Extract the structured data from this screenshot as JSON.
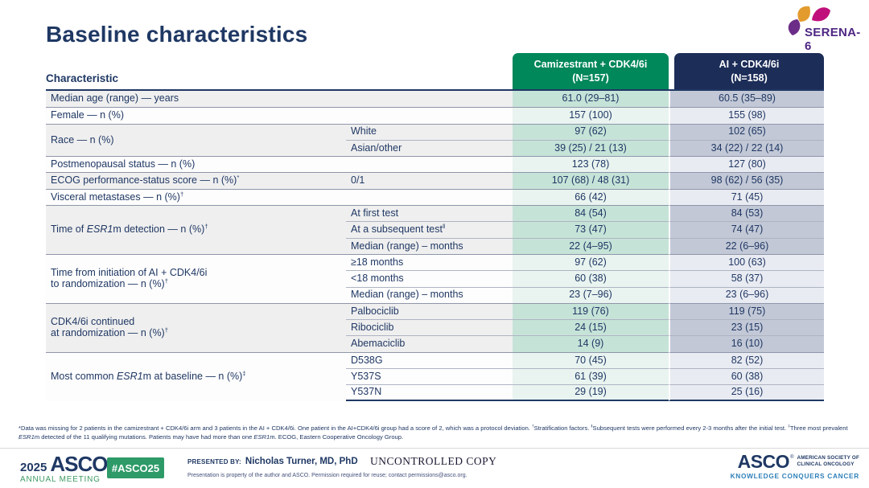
{
  "title": "Baseline characteristics",
  "serena_logo": {
    "text": "SERENA-6"
  },
  "table": {
    "characteristic_header": "Characteristic",
    "columns": [
      {
        "label": "Camizestrant + CDK4/6i\n(N=157)"
      },
      {
        "label": "AI + CDK4/6i\n(N=158)"
      }
    ],
    "groups": [
      {
        "label": "Median age (range) — years",
        "shaded": true,
        "rows": [
          {
            "sub": "",
            "v1": "61.0 (29–81)",
            "v2": "60.5 (35–89)"
          }
        ]
      },
      {
        "label": "Female — n (%)",
        "shaded": false,
        "rows": [
          {
            "sub": "",
            "v1": "157 (100)",
            "v2": "155 (98)"
          }
        ]
      },
      {
        "label": "Race — n (%)",
        "shaded": true,
        "rows": [
          {
            "sub": "White",
            "v1": "97 (62)",
            "v2": "102 (65)"
          },
          {
            "sub": "Asian/other",
            "v1": "39 (25) / 21 (13)",
            "v2": "34 (22) / 22 (14)"
          }
        ]
      },
      {
        "label": "Postmenopausal status — n (%)",
        "shaded": false,
        "rows": [
          {
            "sub": "",
            "v1": "123 (78)",
            "v2": "127 (80)"
          }
        ]
      },
      {
        "label": "ECOG performance-status score — n (%)^*^",
        "shaded": true,
        "rows": [
          {
            "sub": "0/1",
            "v1": "107 (68) / 48 (31)",
            "v2": "98 (62) / 56 (35)"
          }
        ]
      },
      {
        "label": "Visceral metastases — n (%)^†^",
        "shaded": false,
        "rows": [
          {
            "sub": "",
            "v1": "66 (42)",
            "v2": "71 (45)"
          }
        ]
      },
      {
        "label": "Time of _ESR1_m detection — n (%)^†^",
        "shaded": true,
        "rows": [
          {
            "sub": "At first test",
            "v1": "84 (54)",
            "v2": "84 (53)"
          },
          {
            "sub": "At a subsequent test^‖^",
            "v1": "73 (47)",
            "v2": "74 (47)"
          },
          {
            "sub": "Median (range) – months",
            "v1": "22 (4–95)",
            "v2": "22 (6–96)"
          }
        ]
      },
      {
        "label": "Time from initiation of AI + CDK4/6i\nto randomization — n (%)^†^",
        "shaded": false,
        "rows": [
          {
            "sub": "≥18 months",
            "v1": "97 (62)",
            "v2": "100 (63)"
          },
          {
            "sub": "<18 months",
            "v1": "60 (38)",
            "v2": "58 (37)"
          },
          {
            "sub": "Median (range) – months",
            "v1": "23 (7–96)",
            "v2": "23 (6–96)"
          }
        ]
      },
      {
        "label": "CDK4/6i continued\nat randomization — n (%)^†^",
        "shaded": true,
        "rows": [
          {
            "sub": "Palbociclib",
            "v1": "119 (76)",
            "v2": "119 (75)"
          },
          {
            "sub": "Ribociclib",
            "v1": "24 (15)",
            "v2": "23 (15)"
          },
          {
            "sub": "Abemaciclib",
            "v1": "14 (9)",
            "v2": "16 (10)"
          }
        ]
      },
      {
        "label": "Most common _ESR1_m at baseline — n (%)^‡^",
        "shaded": false,
        "rows": [
          {
            "sub": "D538G",
            "v1": "70 (45)",
            "v2": "82 (52)"
          },
          {
            "sub": "Y537S",
            "v1": "61 (39)",
            "v2": "60 (38)"
          },
          {
            "sub": "Y537N",
            "v1": "29 (19)",
            "v2": "25 (16)"
          }
        ]
      }
    ]
  },
  "footnote": "*Data was missing for 2 patients in the camizestrant + CDK4/6i arm and 3 patients in the AI + CDK4/6i. One patient in the AI+CDK4/6i group had a score of 2, which was a protocol deviation. ^†^Stratification factors. ^‖^Subsequent tests were performed every 2-3 months after the initial test. ^‡^Three most prevalent _ESR1_m detected of the 11 qualifying mutations. Patients may have had more than one _ESR1_m. ECOG, Eastern Cooperative Oncology Group.",
  "footer": {
    "meeting_year": "2025",
    "meeting_org": "ASCO",
    "meeting_name": "ANNUAL MEETING",
    "hashtag": "#ASCO25",
    "presented_by_label": "PRESENTED BY:",
    "presenter": "Nicholas Turner, MD, PhD",
    "permission": "Presentation is property of the author and ASCO. Permission required for reuse; contact permissions@asco.org.",
    "watermark": "UNCONTROLLED COPY",
    "asco_org": "ASCO",
    "asco_society_line1": "AMERICAN SOCIETY OF",
    "asco_society_line2": "CLINICAL ONCOLOGY",
    "asco_tagline": "KNOWLEDGE CONQUERS CANCER"
  },
  "colors": {
    "header_green": "#00875A",
    "header_navy": "#1C2D58",
    "text_navy": "#203864",
    "v1_shaded": "#C6E3D8",
    "v1_plain": "#E9F4F0",
    "v2_shaded": "#C2C8D6",
    "v2_plain": "#E9EBF2",
    "label_shaded": "#EFEFEF",
    "label_plain": "#FDFDFD",
    "badge_green": "#2E9A68",
    "tagline_blue": "#2F80B9"
  }
}
